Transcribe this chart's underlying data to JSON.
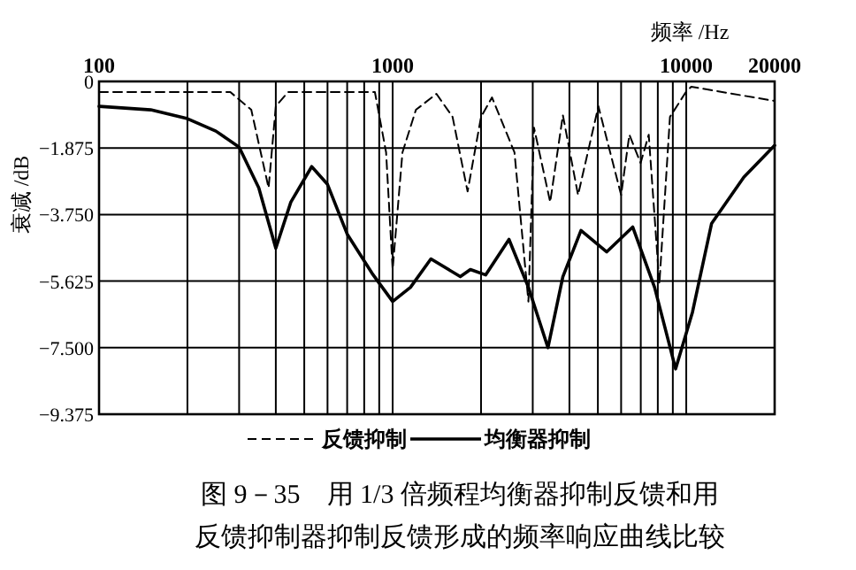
{
  "chart_data": {
    "type": "line",
    "xlabel": "频率 /Hz",
    "ylabel": "衰减 /dB",
    "log": "x",
    "xlim": [
      100,
      20000
    ],
    "ylim": [
      -9.375,
      0
    ],
    "xticks": [
      100,
      {
        "value": 200,
        "label": null
      },
      {
        "value": 300,
        "label": null
      },
      {
        "value": 400,
        "label": null
      },
      {
        "value": 500,
        "label": null
      },
      {
        "value": 600,
        "label": null
      },
      {
        "value": 700,
        "label": null
      },
      {
        "value": 800,
        "label": null
      },
      {
        "value": 900,
        "label": null
      },
      1000,
      {
        "value": 2000,
        "label": null
      },
      {
        "value": 3000,
        "label": null
      },
      {
        "value": 4000,
        "label": null
      },
      {
        "value": 5000,
        "label": null
      },
      {
        "value": 6000,
        "label": null
      },
      {
        "value": 7000,
        "label": null
      },
      {
        "value": 8000,
        "label": null
      },
      {
        "value": 9000,
        "label": null
      },
      10000,
      20000
    ],
    "yticks": [
      0,
      {
        "value": -1.875,
        "label": "−1.875"
      },
      {
        "value": -3.75,
        "label": "−3.750"
      },
      {
        "value": -5.625,
        "label": "−5.625"
      },
      {
        "value": -7.5,
        "label": "−7.500"
      },
      {
        "value": -9.375,
        "label": "−9.375"
      }
    ],
    "grid": true,
    "legend": "bottom",
    "series": [
      {
        "name": "反馈抑制",
        "color": "#000000",
        "line_style": "dashed",
        "x": [
          100,
          280,
          330,
          378,
          400,
          440,
          500,
          870,
          950,
          1000,
          1080,
          1200,
          1410,
          1600,
          1800,
          2000,
          2180,
          2600,
          2900,
          3030,
          3440,
          3800,
          4280,
          5020,
          6000,
          6400,
          6990,
          7450,
          8100,
          8800,
          9970,
          10400,
          20000
        ],
        "values": [
          -0.3,
          -0.3,
          -0.8,
          -3.0,
          -0.7,
          -0.3,
          -0.3,
          -0.3,
          -2.0,
          -5.3,
          -2.0,
          -0.8,
          -0.35,
          -1.0,
          -3.1,
          -1.0,
          -0.45,
          -2.0,
          -6.2,
          -1.3,
          -3.4,
          -0.95,
          -3.2,
          -0.7,
          -3.2,
          -1.5,
          -2.3,
          -1.5,
          -5.7,
          -1.0,
          -0.3,
          -0.15,
          -0.55
        ]
      },
      {
        "name": "均衡器抑制",
        "color": "#000000",
        "line_style": "solid",
        "x": [
          100,
          150,
          200,
          250,
          300,
          350,
          400,
          450,
          530,
          600,
          700,
          850,
          1000,
          1150,
          1350,
          1700,
          1840,
          2075,
          2490,
          2900,
          3380,
          3800,
          4380,
          5360,
          6570,
          7800,
          9200,
          10500,
          12200,
          15700,
          20000
        ],
        "values": [
          -0.7,
          -0.8,
          -1.05,
          -1.4,
          -1.85,
          -3.0,
          -4.7,
          -3.4,
          -2.4,
          -2.9,
          -4.3,
          -5.4,
          -6.2,
          -5.8,
          -5.0,
          -5.5,
          -5.3,
          -5.45,
          -4.45,
          -5.8,
          -7.5,
          -5.5,
          -4.2,
          -4.8,
          -4.1,
          -5.8,
          -8.1,
          -6.5,
          -4.0,
          -2.7,
          -1.8
        ]
      }
    ],
    "annotations": [
      "图 9－35　用 1/3 倍频程均衡器抑制反馈和用反馈抑制器抑制反馈形成的频率响应曲线比较"
    ]
  }
}
